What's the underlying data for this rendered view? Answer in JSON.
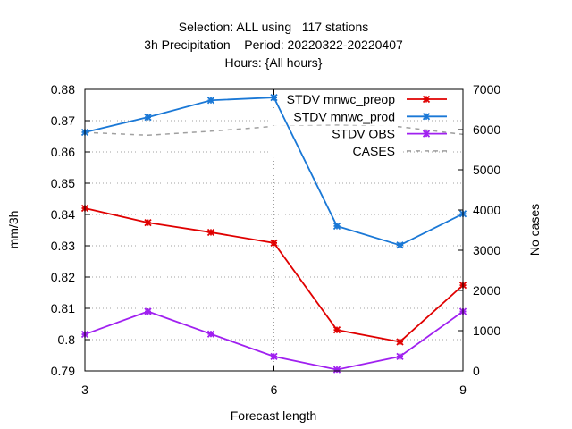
{
  "chart_data": {
    "type": "line",
    "title_lines": [
      "Selection: ALL using   117 stations",
      "3h Precipitation    Period: 20220322-20220407",
      "Hours: {All hours}"
    ],
    "xlabel": "Forecast length",
    "ylabel": "mm/3h",
    "y2label": "No cases",
    "xlim": [
      3,
      9
    ],
    "ylim": [
      0.79,
      0.88
    ],
    "y2lim": [
      0,
      7000
    ],
    "x_ticks": [
      3,
      6,
      9
    ],
    "y_ticks": [
      "0.79",
      "0.8",
      "0.81",
      "0.82",
      "0.83",
      "0.84",
      "0.85",
      "0.86",
      "0.87",
      "0.88"
    ],
    "y2_ticks": [
      "0",
      "1000",
      "2000",
      "3000",
      "4000",
      "5000",
      "6000",
      "7000"
    ],
    "legend_position": "top-right",
    "grid": true,
    "series": [
      {
        "name": "STDV mnwc_preop",
        "axis": "y1",
        "style": "line-points",
        "color": "#e00000",
        "x": [
          3,
          4,
          5,
          6,
          7,
          8,
          9
        ],
        "values": [
          0.842,
          0.8374,
          0.8343,
          0.8309,
          0.8031,
          0.7993,
          0.8174
        ]
      },
      {
        "name": "STDV mnwc_prod",
        "axis": "y1",
        "style": "line-points",
        "color": "#1a78d6",
        "x": [
          3,
          4,
          5,
          6,
          7,
          8,
          9
        ],
        "values": [
          0.8663,
          0.8711,
          0.8765,
          0.8774,
          0.8363,
          0.8302,
          0.8402
        ]
      },
      {
        "name": "STDV OBS",
        "axis": "y1",
        "style": "line-points",
        "color": "#a020f0",
        "x": [
          3,
          4,
          5,
          6,
          7,
          8,
          9
        ],
        "values": [
          0.8017,
          0.809,
          0.8018,
          0.7946,
          0.7904,
          0.7946,
          0.809
        ]
      },
      {
        "name": "CASES",
        "axis": "y2",
        "style": "dashed",
        "color": "#a0a0a0",
        "x": [
          3,
          4,
          5,
          6,
          7,
          8,
          9
        ],
        "values": [
          5930,
          5860,
          5960,
          6080,
          6110,
          6070,
          5880
        ]
      }
    ]
  }
}
